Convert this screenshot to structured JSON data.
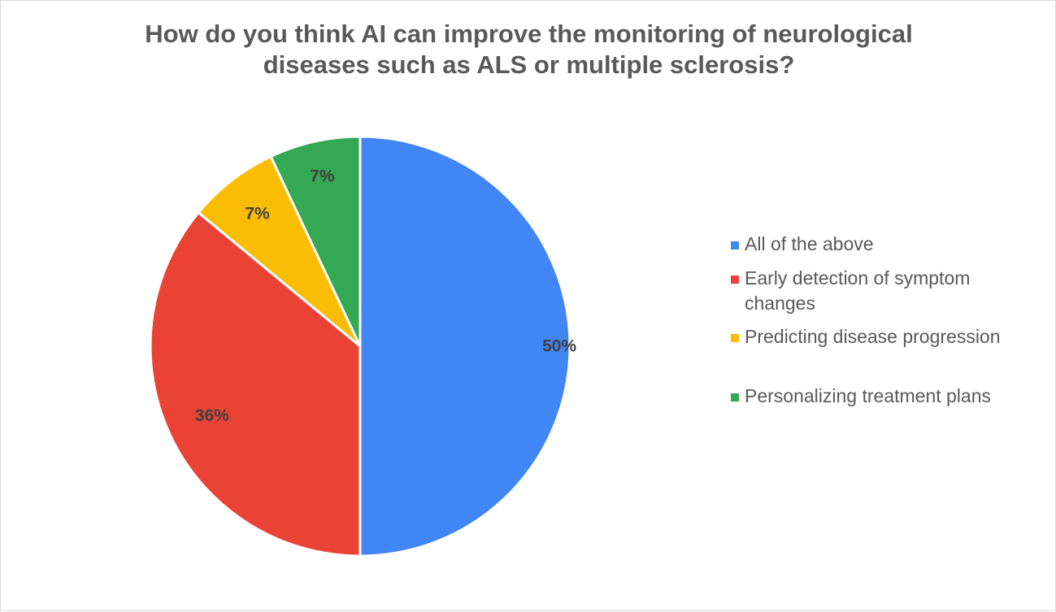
{
  "chart_data": {
    "type": "pie",
    "title_lines": [
      "How do you think AI can improve the monitoring of neurological",
      "diseases such as ALS or multiple sclerosis?"
    ],
    "slices": [
      {
        "label": "All of the above",
        "value": 50,
        "display": "50%",
        "color": "#4285F4"
      },
      {
        "label": "Early detection of symptom changes",
        "value": 36,
        "display": "36%",
        "color": "#EA4335"
      },
      {
        "label": "Predicting disease progression",
        "value": 7,
        "display": "7%",
        "color": "#FBBC04"
      },
      {
        "label": "Personalizing treatment plans",
        "value": 7,
        "display": "7%",
        "color": "#34A853"
      }
    ],
    "legend_position": "right",
    "start_angle_deg": 0,
    "direction": "clockwise"
  },
  "legend": {
    "items": [
      {
        "lines": [
          "All of the above"
        ],
        "color": "#4285F4"
      },
      {
        "lines": [
          "Early detection of symptom",
          "changes"
        ],
        "color": "#EA4335"
      },
      {
        "lines": [
          "Predicting disease progression"
        ],
        "color": "#FBBC04"
      },
      {
        "lines": [
          "Personalizing treatment plans"
        ],
        "color": "#34A853"
      }
    ]
  }
}
